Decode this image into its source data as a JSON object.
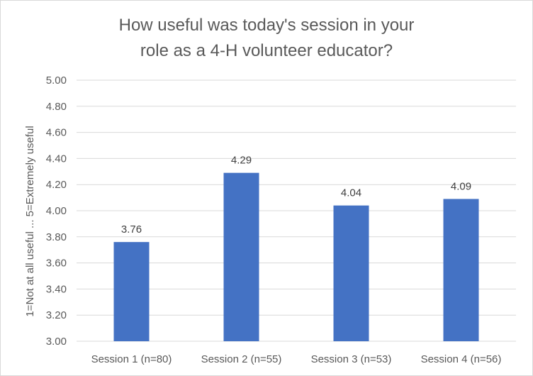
{
  "chart_data": {
    "type": "bar",
    "title_lines": [
      "How useful was today's session in your",
      "role as a 4-H volunteer educator?"
    ],
    "ylabel": "1=Not at all useful ... 5=Extremely useful",
    "xlabel": "",
    "categories": [
      "Session 1 (n=80)",
      "Session 2 (n=55)",
      "Session 3 (n=53)",
      "Session 4 (n=56)"
    ],
    "values": [
      3.76,
      4.29,
      4.04,
      4.09
    ],
    "data_labels": [
      "3.76",
      "4.29",
      "4.04",
      "4.09"
    ],
    "ylim": [
      3.0,
      5.0
    ],
    "yticks": [
      "3.00",
      "3.20",
      "3.40",
      "3.60",
      "3.80",
      "4.00",
      "4.20",
      "4.40",
      "4.60",
      "4.80",
      "5.00"
    ],
    "grid": true,
    "bar_color": "#4472C4",
    "grid_color": "#D9D9D9"
  }
}
